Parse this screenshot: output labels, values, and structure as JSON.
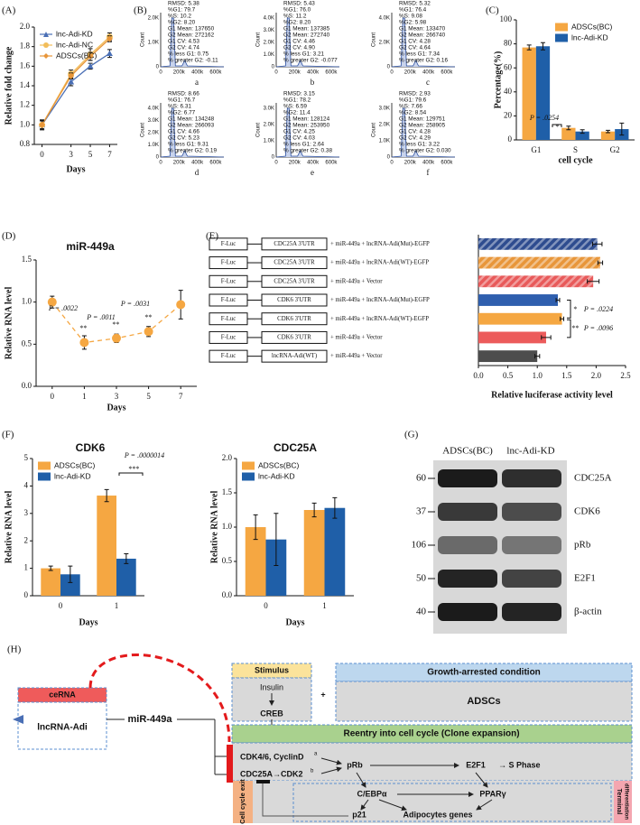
{
  "chart_data": [
    {
      "type": "line",
      "label": "(A)",
      "x": [
        0,
        3,
        5,
        7
      ],
      "xlim": [
        -0.8,
        7.8
      ],
      "xticks": [
        0,
        3,
        5,
        7
      ],
      "ylim": [
        0.8,
        2.0
      ],
      "yticks": [
        0.8,
        {
          "value": 1,
          "label": "1.0"
        },
        1.2,
        1.4,
        1.6,
        1.8,
        {
          "value": 2,
          "label": "2.0"
        }
      ],
      "xlabel": "Days",
      "ylabel": "Relative fold change",
      "legend": "upper left",
      "series": [
        {
          "name": "lnc-Adi-KD",
          "color": "#4a6fb5",
          "marker": "triangle",
          "values": [
            1.0,
            1.44,
            1.6,
            1.73
          ],
          "errors": [
            0.05,
            0.04,
            0.03,
            0.04
          ]
        },
        {
          "name": "lnc-Adi-NC",
          "color": "#f2bd5a",
          "marker": "circle",
          "values": [
            1.0,
            1.52,
            1.72,
            1.9
          ],
          "errors": [
            0.05,
            0.04,
            0.06,
            0.04
          ]
        },
        {
          "name": "ADSCs(BC)",
          "color": "#e8963a",
          "marker": "diamond",
          "values": [
            1.0,
            1.5,
            1.7,
            1.88
          ],
          "errors": [
            0.04,
            0.03,
            0.04,
            0.03
          ]
        }
      ]
    },
    {
      "type": "bar",
      "label": "(C)",
      "categories": [
        "G1",
        "S",
        "G2"
      ],
      "ylim": [
        0,
        100
      ],
      "yticks": [
        0,
        20,
        40,
        60,
        80,
        100
      ],
      "xlabel": "cell cycle",
      "ylabel": "Percentage(%)",
      "legend": "upper right",
      "series": [
        {
          "name": "ADSCs(BC)",
          "color": "#f5a742",
          "values": [
            77,
            10,
            7
          ],
          "errors": [
            2,
            1.5,
            1
          ]
        },
        {
          "name": "lnc-Adi-KD",
          "color": "#1f5fa8",
          "values": [
            78,
            7,
            9
          ],
          "errors": [
            3,
            1.5,
            5
          ]
        }
      ],
      "annotations": [
        "P = .0254",
        "*"
      ]
    },
    {
      "type": "line",
      "label": "(D)",
      "title": "miR-449a",
      "categories": [
        "0",
        "1",
        "3",
        "5",
        "7"
      ],
      "values": [
        1.0,
        0.52,
        0.57,
        0.65,
        0.97
      ],
      "errors": [
        0.07,
        0.08,
        0.05,
        0.06,
        0.17
      ],
      "color": "#f5a742",
      "marker": "circle",
      "line_style": "dashed",
      "ylim": [
        0,
        1.5
      ],
      "yticks": [
        {
          "value": 0,
          "label": "0.0"
        },
        0.5,
        {
          "value": 1,
          "label": "1.0"
        },
        1.5
      ],
      "xlabel": "Days",
      "ylabel": "Relative RNA level",
      "annotations": [
        "P = .0022",
        "**",
        "P = .0011",
        "**",
        "P = .0031",
        "**"
      ]
    },
    {
      "type": "barh",
      "label": "(E)",
      "reporters": [
        "F-Luc",
        "F-Luc",
        "F-Luc",
        "F-Luc",
        "F-Luc",
        "F-Luc",
        "F-Luc"
      ],
      "utrs": [
        "CDC25A 3'UTR",
        "CDC25A 3'UTR",
        "CDC25A 3'UTR",
        "CDK6 3'UTR",
        "CDK6 3'UTR",
        "CDK6 3'UTR",
        "lncRNA-Adi(WT)"
      ],
      "categories": [
        "+ miR-449a + lncRNA-Adi(Mut)-EGFP",
        "+ miR-449a + lncRNA-Adi(WT)-EGFP",
        "+ miR-449a + Vector",
        "+ miR-449a + lncRNA-Adi(Mut)-EGFP",
        "+ miR-449a + lncRNA-Adi(WT)-EGFP",
        "+ miR-449a + Vector",
        "+ miR-449a + Vector"
      ],
      "values": [
        2.02,
        2.07,
        1.95,
        1.35,
        1.42,
        1.15,
        1.0
      ],
      "errors": [
        0.08,
        0.04,
        0.1,
        0.03,
        0.03,
        0.08,
        0.04
      ],
      "colors": [
        "#2e4c8f",
        "#e8963a",
        "#e85a5a",
        "#2f5fae",
        "#f5a742",
        "#ec5b5b",
        "#4d4d4d"
      ],
      "hatch": [
        true,
        true,
        true,
        false,
        false,
        false,
        false
      ],
      "xlim": [
        0,
        2.5
      ],
      "xticks": [
        {
          "value": 0,
          "label": "0.0"
        },
        0.5,
        {
          "value": 1,
          "label": "1.0"
        },
        1.5,
        {
          "value": 2,
          "label": "2.0"
        },
        2.5
      ],
      "xlabel": "Relative luciferase activity level",
      "annotations": [
        "*",
        "P = .0224",
        "**",
        "P = .0096"
      ]
    },
    {
      "type": "bar",
      "label": "(F)",
      "title": "CDK6",
      "categories": [
        "0",
        "1"
      ],
      "ylim": [
        0,
        5
      ],
      "yticks": [
        0,
        1,
        2,
        3,
        4,
        5
      ],
      "xlabel": "Days",
      "ylabel": "Relative RNA level",
      "legend": "upper left",
      "series": [
        {
          "name": "ADSCs(BC)",
          "color": "#f5a742",
          "values": [
            1.0,
            3.65
          ],
          "errors": [
            0.08,
            0.22
          ]
        },
        {
          "name": "lnc-Adi-KD",
          "color": "#1f5fa8",
          "values": [
            0.78,
            1.35
          ],
          "errors": [
            0.3,
            0.18
          ]
        }
      ],
      "annotations": [
        "P = .0000014",
        "***"
      ]
    },
    {
      "type": "bar",
      "title": "CDC25A",
      "categories": [
        "0",
        "1"
      ],
      "ylim": [
        0,
        2
      ],
      "yticks": [
        {
          "value": 0,
          "label": "0.0"
        },
        0.5,
        {
          "value": 1,
          "label": "1.0"
        },
        1.5,
        {
          "value": 2,
          "label": "2.0"
        }
      ],
      "xlabel": "Days",
      "ylabel": "Relative RNA level",
      "legend": "upper left",
      "series": [
        {
          "name": "ADSCs(BC)",
          "color": "#f5a742",
          "values": [
            1.0,
            1.25
          ],
          "errors": [
            0.18,
            0.1
          ]
        },
        {
          "name": "lnc-Adi-KD",
          "color": "#1f5fa8",
          "values": [
            0.82,
            1.28
          ],
          "errors": [
            0.38,
            0.15
          ]
        }
      ]
    }
  ],
  "flow": {
    "label": "(B)",
    "panels": [
      {
        "letter": "a",
        "ylabel": "Count",
        "yticks": [
          "0",
          "1.0K",
          "2.0K"
        ],
        "xticks": [
          "0",
          "200k",
          "400k",
          "600k"
        ],
        "stats": [
          "RMSD: 5.38",
          "%G1: 79.7",
          "%S: 10.2",
          "%G2: 8.20",
          "G1 Mean: 137650",
          "G2 Mean: 272162",
          "G1 CV: 4.53",
          "G2 CV: 4.74",
          "% less G1: 0.75",
          "% greater G2: -0.11"
        ]
      },
      {
        "letter": "b",
        "ylabel": "Count",
        "yticks": [
          "0",
          "1.0K",
          "2.0K",
          "3.0K",
          "4.0K"
        ],
        "xticks": [
          "0",
          "200k",
          "400k",
          "600k"
        ],
        "stats": [
          "RMSD: 5.43",
          "%G1: 76.0",
          "%S: 11.2",
          "%G2: 8.20",
          "G1 Mean: 137385",
          "G2 Mean: 272740",
          "G1 CV: 4.46",
          "G2 CV: 4.90",
          "% less G1: 3.21",
          "% greater G2: -0.077"
        ]
      },
      {
        "letter": "c",
        "ylabel": "Count",
        "yticks": [
          "0",
          "2.0K",
          "4.0K"
        ],
        "xticks": [
          "0",
          "200k",
          "400k",
          "600k"
        ],
        "stats": [
          "RMSD: 5.32",
          "%G1: 76.4",
          "%S: 9.08",
          "%G2: 5.98",
          "G1 Mean: 133470",
          "G2 Mean: 266740",
          "G1 CV: 4.28",
          "G2 CV: 4.64",
          "% less G1: 7.34",
          "% greater G2: 0.16"
        ]
      },
      {
        "letter": "d",
        "ylabel": "Count",
        "yticks": [
          "0",
          "1.0K",
          "2.0K",
          "3.0K",
          "4.0K"
        ],
        "xticks": [
          "0",
          "200k",
          "400k",
          "600k"
        ],
        "stats": [
          "RMSD: 8.66",
          "%G1: 76.7",
          "%S: 6.31",
          "%G2: 6.77",
          "G1 Mean: 134248",
          "G2 Mean: 266093",
          "G1 CV: 4.66",
          "G2 CV: 5.23",
          "% less G1: 9.31",
          "% greater G2: 0.19"
        ]
      },
      {
        "letter": "e",
        "ylabel": "Count",
        "yticks": [
          "0",
          "1.0K",
          "2.0K",
          "3.0K"
        ],
        "xticks": [
          "0",
          "200k",
          "400k",
          "600k"
        ],
        "stats": [
          "RMSD: 3.15",
          "%G1: 78.2",
          "%S: 6.59",
          "%G2: 11.4",
          "G1 Mean: 128124",
          "G2 Mean: 253950",
          "G1 CV: 4.25",
          "G2 CV: 4.03",
          "% less G1: 2.64",
          "% greater G2: 0.38"
        ]
      },
      {
        "letter": "f",
        "ylabel": "Count",
        "yticks": [
          "0",
          "1.0K",
          "2.0K",
          "3.0K"
        ],
        "xticks": [
          "0",
          "200k",
          "400k",
          "600k"
        ],
        "stats": [
          "RMSD: 2.93",
          "%G1: 79.6",
          "%S: 7.66",
          "%G2: 8.54",
          "G1 Mean: 129751",
          "G2 Mean: 258905",
          "G1 CV: 4.28",
          "G2 CV: 4.29",
          "% less G1: 3.22",
          "% greater G2: 0.030"
        ]
      }
    ]
  },
  "blot": {
    "label": "(G)",
    "lanes": [
      "ADSCs(BC)",
      "lnc-Adi-KD"
    ],
    "rows": [
      {
        "marker": "60",
        "protein": "CDC25A"
      },
      {
        "marker": "37",
        "protein": "CDK6"
      },
      {
        "marker": "106",
        "protein": "pRb"
      },
      {
        "marker": "50",
        "protein": "E2F1"
      },
      {
        "marker": "40",
        "protein": "β-actin"
      }
    ]
  },
  "diagram": {
    "label": "(H)",
    "stimulus": "Stimulus",
    "insulin": "Insulin",
    "creb": "CREB",
    "plus": "+",
    "condition": "Growth-arrested condition",
    "adscs": "ADSCs",
    "reentry": "Reentry into cell cycle (Clone expansion)",
    "cdk46": "CDK4/6, CyclinD",
    "note_a": "a",
    "cdc25a": "CDC25A→CDK2",
    "note_b": "b",
    "prb": "pRb",
    "e2f1": "E2F1",
    "s_phase": "→ S Phase",
    "cebpa": "C/EBPα",
    "pparg": "PPARγ",
    "adipo": "Adipocytes genes",
    "p21": "p21",
    "exit": "Cell cycle exit",
    "terminal_1": "Terminal",
    "terminal_2": "differentiation",
    "cerna": "ceRNA",
    "lnc": "lncRNA-Adi",
    "mir": "miR-449a"
  }
}
